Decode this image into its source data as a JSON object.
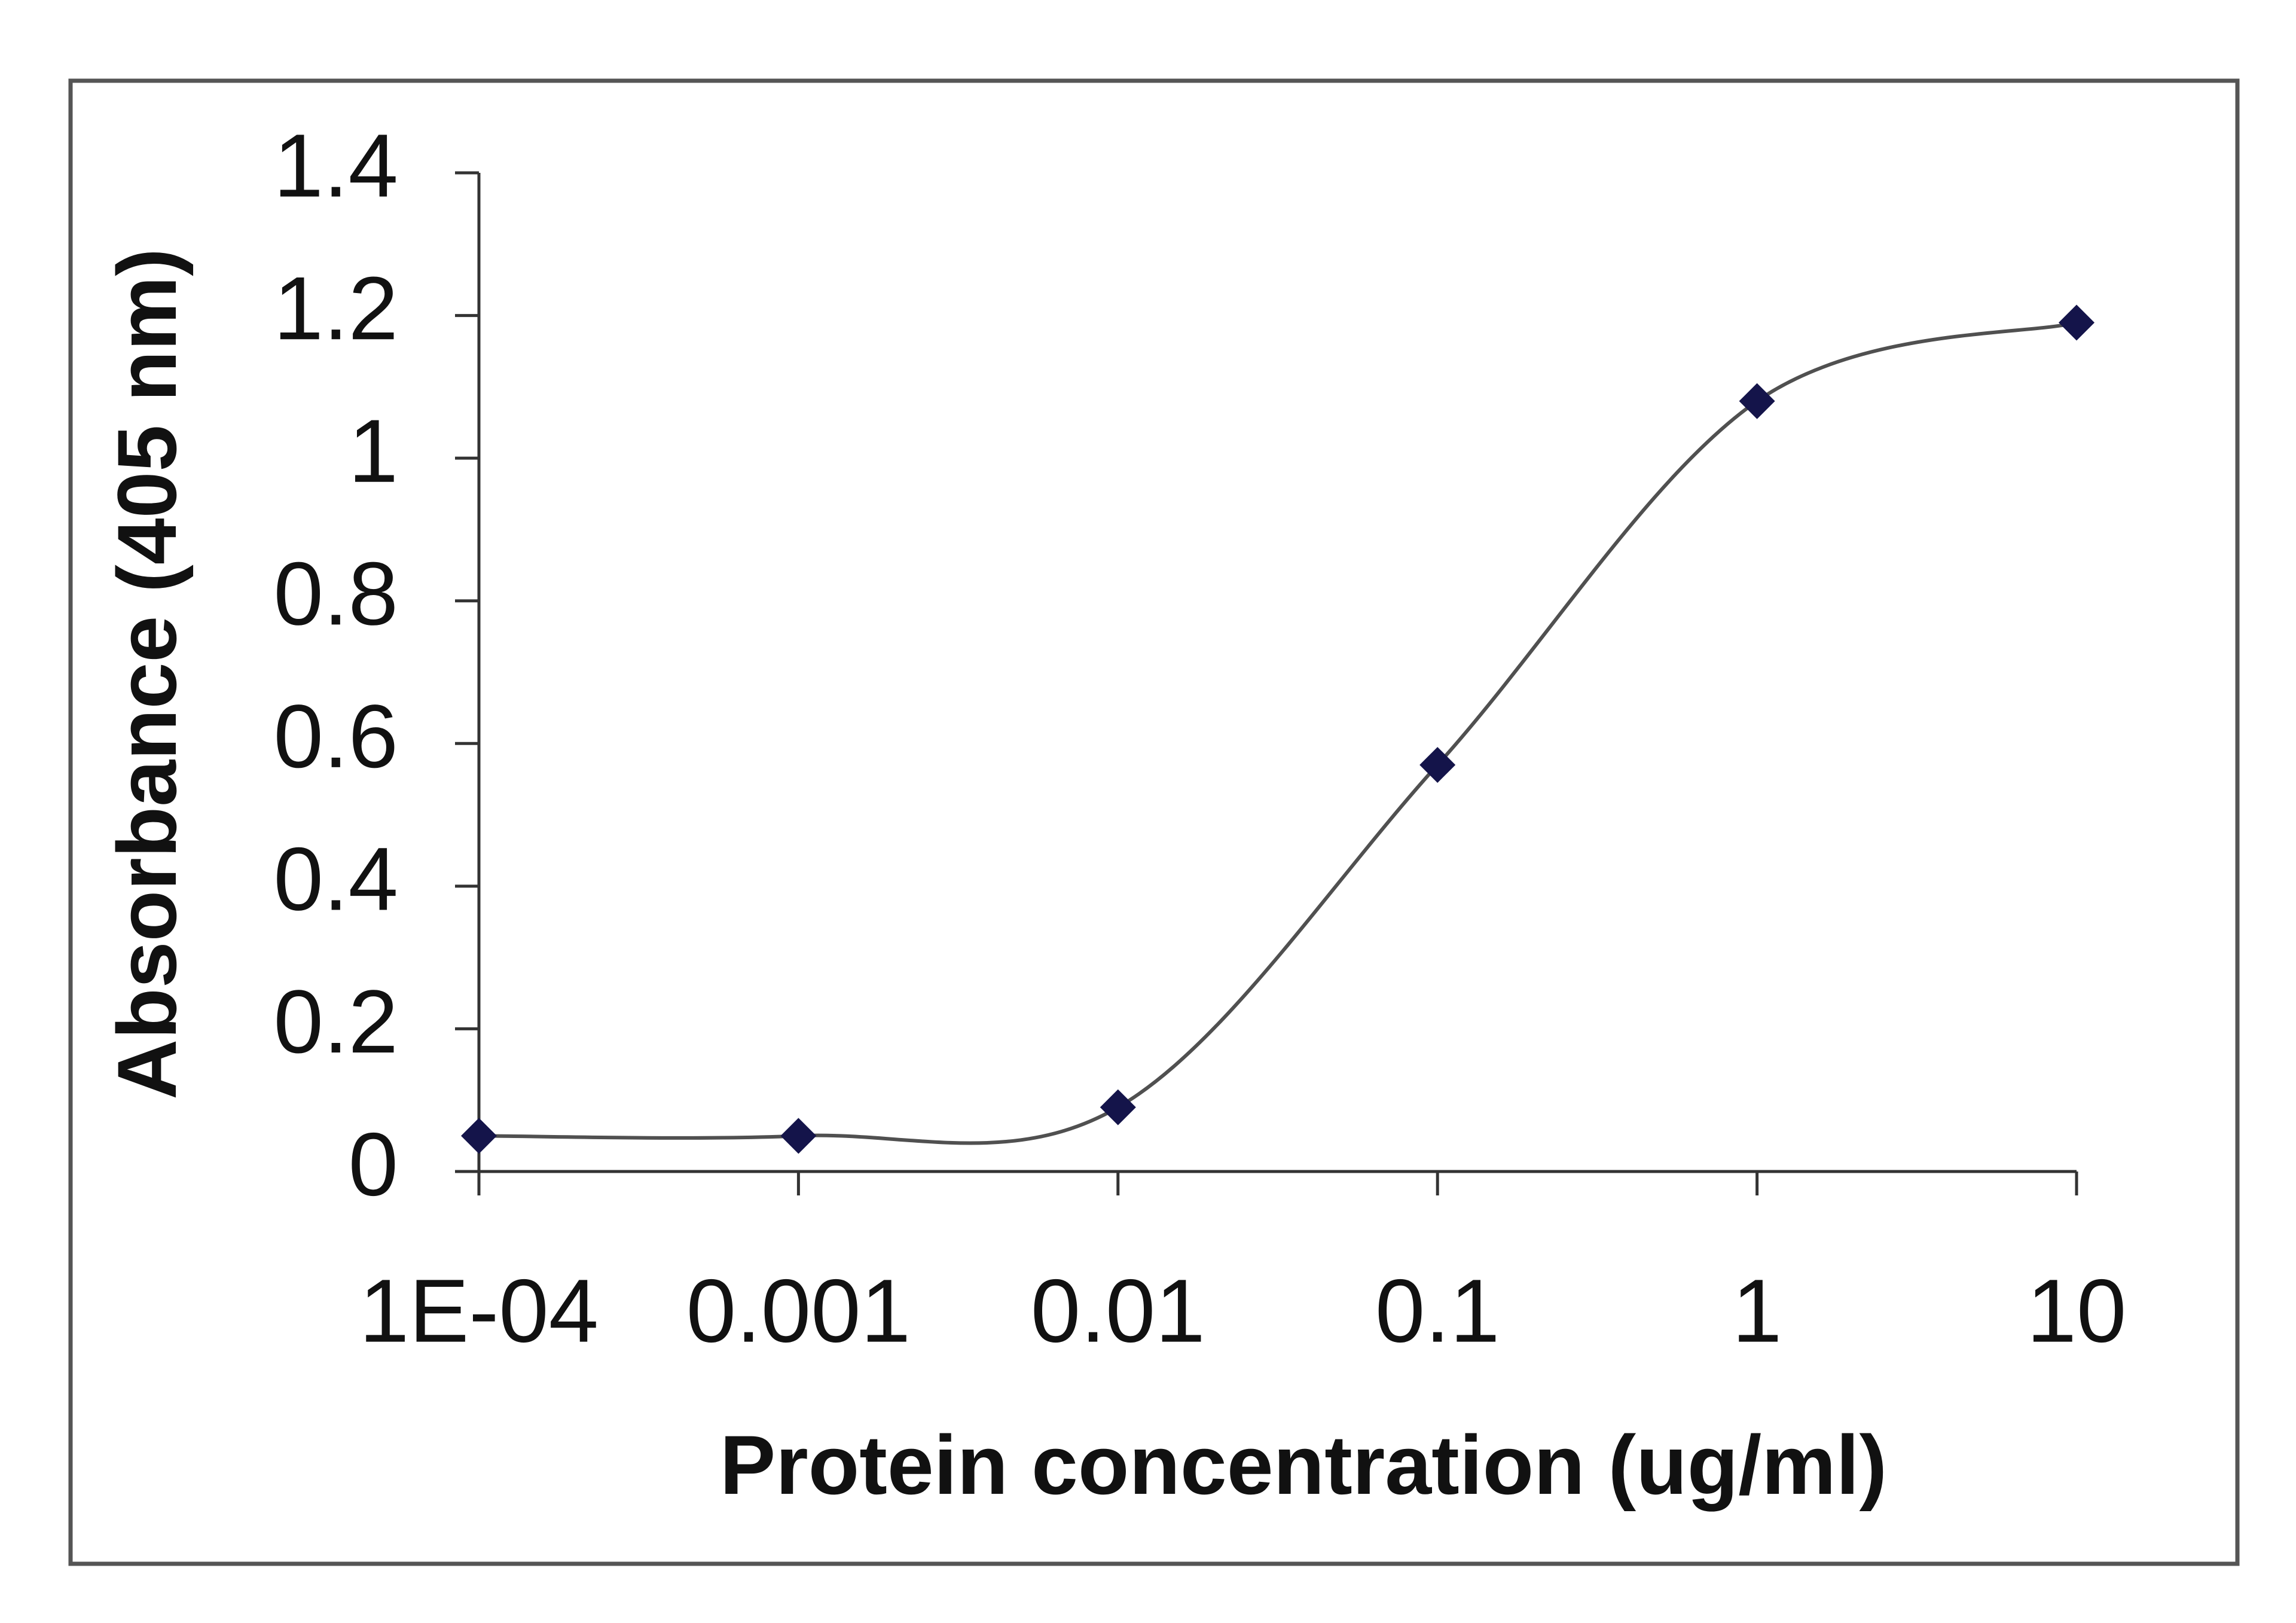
{
  "chart_data": {
    "type": "line",
    "x_label": "Protein concentration (ug/ml)",
    "y_label": "Absorbance (405 nm)",
    "x": [
      0.0001,
      0.001,
      0.01,
      0.1,
      1,
      10
    ],
    "values": [
      0.05,
      0.05,
      0.09,
      0.57,
      1.08,
      1.19
    ],
    "color": "#14144a",
    "line_color": "#505050",
    "marker": "diamond",
    "smooth": true,
    "xscale": "log",
    "xlim": [
      0.0001,
      10
    ],
    "xticks": [
      {
        "value": 0.0001,
        "label": "1E-04"
      },
      0.001,
      0.01,
      0.1,
      1,
      10
    ],
    "ylim": [
      0,
      1.4
    ],
    "yticks": [
      0,
      0.2,
      0.4,
      0.6,
      0.8,
      1,
      1.2,
      1.4
    ],
    "grid": false
  }
}
